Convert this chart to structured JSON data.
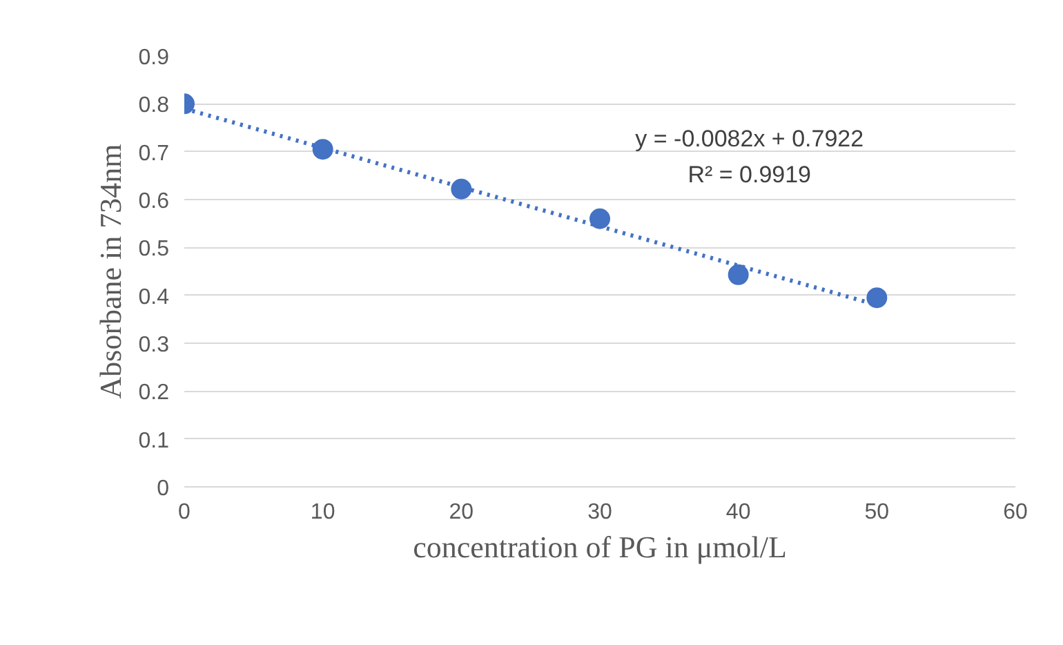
{
  "chart_data": {
    "type": "scatter",
    "xlabel": "concentration of PG in μmol/L",
    "ylabel": "Absorbane in 734nm",
    "x": [
      0,
      10,
      20,
      30,
      40,
      50
    ],
    "series": [
      {
        "color": "#4472c4",
        "values": [
          0.8,
          0.705,
          0.622,
          0.56,
          0.443,
          0.395
        ],
        "marker": "circle"
      },
      {
        "type": "line",
        "color": "#4472c4",
        "x": [
          0,
          50
        ],
        "values": [
          0.79,
          0.38
        ],
        "line_style": "dotted",
        "marker": "none"
      }
    ],
    "annotations": [
      "y = -0.0082x + 0.7922",
      "R² = 0.9919"
    ],
    "xlim": [
      0,
      60
    ],
    "xticks": [
      0,
      10,
      20,
      30,
      40,
      50,
      60
    ],
    "ylim": [
      0,
      0.9
    ],
    "yticks": [
      0,
      0.1,
      0.2,
      0.3,
      0.4,
      0.5,
      0.6,
      0.7,
      0.8,
      0.9
    ],
    "grid": "y"
  }
}
